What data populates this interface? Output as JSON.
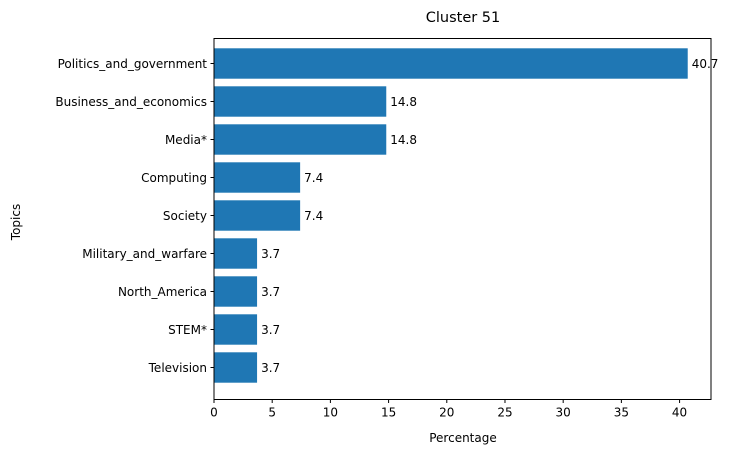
{
  "chart_data": {
    "type": "bar",
    "orientation": "horizontal",
    "title": "Cluster 51",
    "xlabel": "Percentage",
    "ylabel": "Topics",
    "categories": [
      "Politics_and_government",
      "Business_and_economics",
      "Media*",
      "Computing",
      "Society",
      "Military_and_warfare",
      "North_America",
      "STEM*",
      "Television"
    ],
    "values": [
      40.7,
      14.8,
      14.8,
      7.4,
      7.4,
      3.7,
      3.7,
      3.7,
      3.7
    ],
    "value_labels": [
      "40.7",
      "14.8",
      "14.8",
      "7.4",
      "7.4",
      "3.7",
      "3.7",
      "3.7",
      "3.7"
    ],
    "xlim": [
      0,
      42.7
    ],
    "xticks": [
      0,
      5,
      10,
      15,
      20,
      25,
      30,
      35,
      40
    ],
    "xtick_labels": [
      "0",
      "5",
      "10",
      "15",
      "20",
      "25",
      "30",
      "35",
      "40"
    ],
    "bar_color": "#1f77b4",
    "grid": false,
    "legend": "none"
  }
}
